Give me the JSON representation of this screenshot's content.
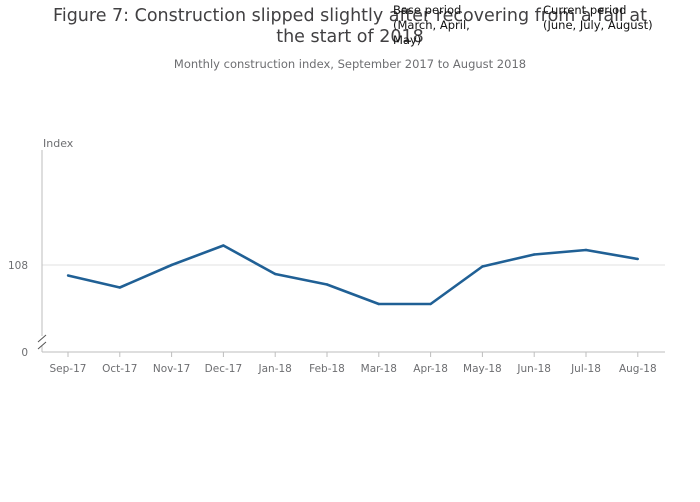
{
  "title": "Figure 7: Construction slipped slightly after recovering from a fall at the start of 2018",
  "subtitle": "Monthly construction index, September 2017 to August 2018",
  "annotations": {
    "base_period": "Base period\n(March, April,\nMay)",
    "current_period": "Current period\n(June, July, August)"
  },
  "chart_data": {
    "type": "line",
    "title": "Figure 7: Construction slipped slightly after recovering from a fall at the start of 2018",
    "subtitle": "Monthly construction index, September 2017 to August 2018",
    "ylabel": "Index",
    "categories": [
      "Sep-17",
      "Oct-17",
      "Nov-17",
      "Dec-17",
      "Jan-18",
      "Feb-18",
      "Mar-18",
      "Apr-18",
      "May-18",
      "Jun-18",
      "Jul-18",
      "Aug-18"
    ],
    "series": [
      {
        "values": [
          107.3,
          106.5,
          108.0,
          109.3,
          107.4,
          106.7,
          105.4,
          105.4,
          107.9,
          108.7,
          109.0,
          108.4
        ],
        "color": "#206095"
      }
    ],
    "yticks": [
      0,
      108
    ],
    "ylim": [
      103.0,
      114.0
    ],
    "axis_break": true,
    "grid": true,
    "colors": {
      "line": "#206095",
      "grid": "#e0e0e0",
      "axis": "#bebebe"
    }
  }
}
